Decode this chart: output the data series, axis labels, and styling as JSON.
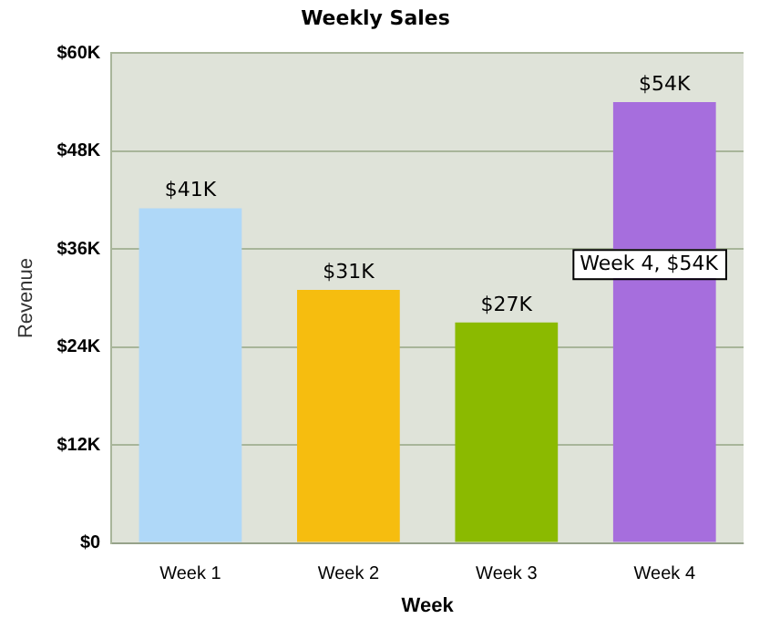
{
  "chart_data": {
    "type": "bar",
    "title": "Weekly Sales",
    "xlabel": "Week",
    "ylabel": "Revenue",
    "categories": [
      "Week 1",
      "Week 2",
      "Week 3",
      "Week 4"
    ],
    "values": [
      41,
      31,
      27,
      54
    ],
    "colors": [
      "#afd8f8",
      "#f6bd0f",
      "#8bba00",
      "#a66edd"
    ],
    "value_labels": [
      "$41K",
      "$31K",
      "$27K",
      "$54K"
    ],
    "ylim": [
      0,
      60
    ],
    "yticks": [
      {
        "value": 0,
        "label": "$0"
      },
      {
        "value": 12,
        "label": "$12K"
      },
      {
        "value": 24,
        "label": "$24K"
      },
      {
        "value": 36,
        "label": "$36K"
      },
      {
        "value": 48,
        "label": "$48K"
      },
      {
        "value": 60,
        "label": "$60K"
      }
    ],
    "grid": "y",
    "annotations": [
      "Week 4, $54K"
    ]
  }
}
